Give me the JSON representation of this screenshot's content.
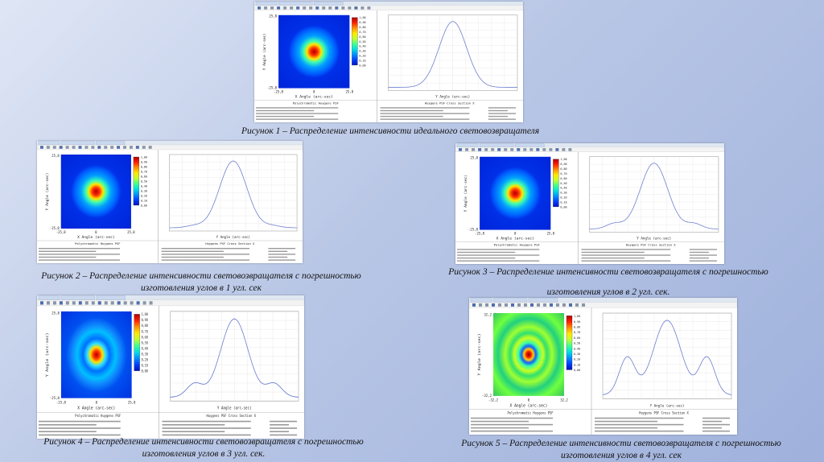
{
  "colorbar_ticks": [
    "1,00",
    "0,90",
    "0,80",
    "0,70",
    "0,60",
    "0,50",
    "0,40",
    "0,30",
    "0,20",
    "0,10",
    "0,00"
  ],
  "figures": [
    {
      "caption": [
        "Рисунок 1 – Распределение интенсивности идеального световозвращателя"
      ],
      "psf": {
        "title": "Polychromatic Huygens PSF",
        "x_label": "X Angle (arc-sec)",
        "y_label": "Y Angle (arc-sec)",
        "min": "-25,8",
        "max": "25,8",
        "center": "0"
      },
      "cross": {
        "title": "Huygens PSF Cross Section X",
        "x_label": "Y Angle (arc-sec)"
      }
    },
    {
      "caption": [
        "Рисунок 2 – Распределение интенсивности световозвращателя с погрешностью",
        "изготовления углов в 1 угл. сек"
      ],
      "psf": {
        "title": "Polychromatic Huygens PSF",
        "x_label": "X Angle (arc-sec)",
        "y_label": "Y Angle (arc-sec)",
        "min": "-25,8",
        "max": "25,8",
        "center": "0"
      },
      "cross": {
        "title": "Huygens PSF Cross Section X",
        "x_label": "Y Angle (arc-sec)"
      }
    },
    {
      "caption": [
        "Рисунок 3 – Распределение интенсивности световозвращателя с погрешностью",
        "изготовления углов в 2 угл. сек."
      ],
      "psf": {
        "title": "Polychromatic Huygens PSF",
        "x_label": "X Angle (arc-sec)",
        "y_label": "Y Angle (arc-sec)",
        "min": "-25,8",
        "max": "25,8",
        "center": "0"
      },
      "cross": {
        "title": "Huygens PSF Cross Section X",
        "x_label": "Y Angle (arc-sec)"
      }
    },
    {
      "caption": [
        "Рисунок 4 – Распределение интенсивности световозвращателя с погрешностью",
        "изготовления углов в 3 угл. сек."
      ],
      "psf": {
        "title": "Polychromatic Huygens PSF",
        "x_label": "X Angle (arc-sec)",
        "y_label": "Y Angle (arc-sec)",
        "min": "-25,8",
        "max": "25,8",
        "center": "0"
      },
      "cross": {
        "title": "Huygens PSF Cross Section X",
        "x_label": "Y Angle (arc-sec)"
      }
    },
    {
      "caption": [
        "Рисунок 5 – Распределение интенсивности световозвращателя с погрешностью",
        "изготовления углов в 4 угл. сек"
      ],
      "psf": {
        "title": "Polychromatic Huygens PSF",
        "x_label": "X Angle (arc-sec)",
        "y_label": "Y Angle (arc-sec)",
        "min": "-32,2",
        "max": "32,2",
        "center": "0"
      },
      "cross": {
        "title": "Huygens PSF Cross Section X",
        "x_label": "Y Angle (arc-sec)"
      }
    }
  ]
}
